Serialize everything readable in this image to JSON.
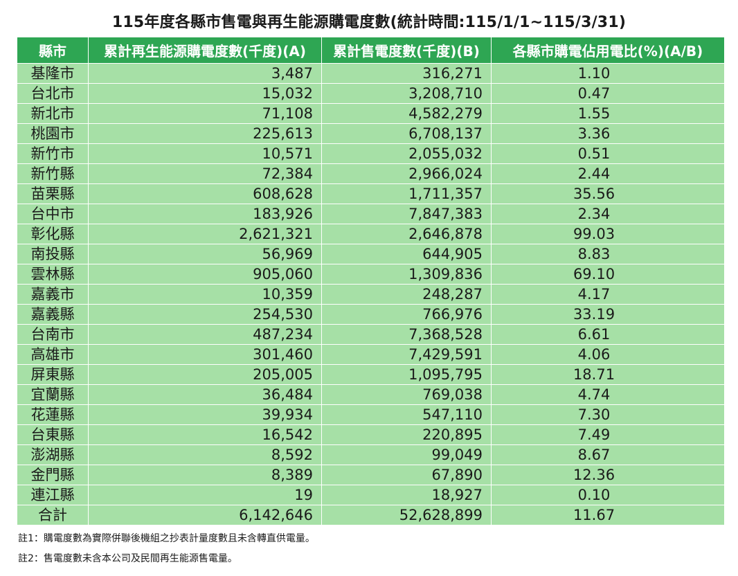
{
  "title": "115年度各縣市售電與再生能源購電度數(統計時間:115/1/1~115/3/31)",
  "table": {
    "headers": [
      "縣市",
      "累計再生能源購電度數(千度)(A)",
      "累計售電度數(千度)(B)",
      "各縣市購電佔用電比(%)(A/B)"
    ],
    "rows": [
      [
        "基隆市",
        "3,487",
        "316,271",
        "1.10"
      ],
      [
        "台北市",
        "15,032",
        "3,208,710",
        "0.47"
      ],
      [
        "新北市",
        "71,108",
        "4,582,279",
        "1.55"
      ],
      [
        "桃園市",
        "225,613",
        "6,708,137",
        "3.36"
      ],
      [
        "新竹市",
        "10,571",
        "2,055,032",
        "0.51"
      ],
      [
        "新竹縣",
        "72,384",
        "2,966,024",
        "2.44"
      ],
      [
        "苗栗縣",
        "608,628",
        "1,711,357",
        "35.56"
      ],
      [
        "台中市",
        "183,926",
        "7,847,383",
        "2.34"
      ],
      [
        "彰化縣",
        "2,621,321",
        "2,646,878",
        "99.03"
      ],
      [
        "南投縣",
        "56,969",
        "644,905",
        "8.83"
      ],
      [
        "雲林縣",
        "905,060",
        "1,309,836",
        "69.10"
      ],
      [
        "嘉義市",
        "10,359",
        "248,287",
        "4.17"
      ],
      [
        "嘉義縣",
        "254,530",
        "766,976",
        "33.19"
      ],
      [
        "台南市",
        "487,234",
        "7,368,528",
        "6.61"
      ],
      [
        "高雄市",
        "301,460",
        "7,429,591",
        "4.06"
      ],
      [
        "屏東縣",
        "205,005",
        "1,095,795",
        "18.71"
      ],
      [
        "宜蘭縣",
        "36,484",
        "769,038",
        "4.74"
      ],
      [
        "花蓮縣",
        "39,934",
        "547,110",
        "7.30"
      ],
      [
        "台東縣",
        "16,542",
        "220,895",
        "7.49"
      ],
      [
        "澎湖縣",
        "8,592",
        "99,049",
        "8.67"
      ],
      [
        "金門縣",
        "8,389",
        "67,890",
        "12.36"
      ],
      [
        "連江縣",
        "19",
        "18,927",
        "0.10"
      ],
      [
        "合計",
        "6,142,646",
        "52,628,899",
        "11.67"
      ]
    ]
  },
  "notes": [
    "註1：購電度數為實際併聯後機組之抄表計量度數且未含轉直供電量。",
    "註2：售電度數未含本公司及民間再生能源售電量。"
  ],
  "colors": {
    "header_bg": "#2ea653",
    "row_bg": "#a6e0a6",
    "header_text": "#ffffff"
  }
}
